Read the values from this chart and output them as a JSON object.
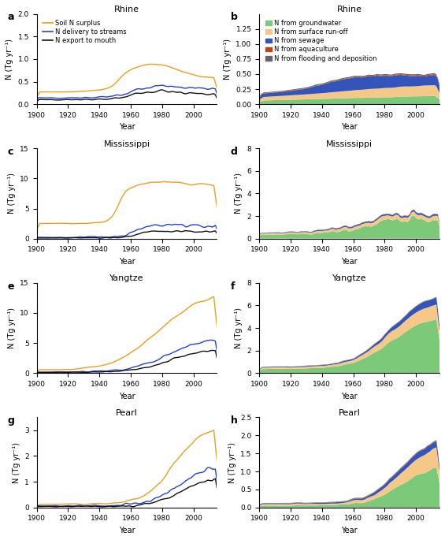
{
  "panels": {
    "a": {
      "title": "Rhine",
      "ylim": [
        0,
        2.0
      ],
      "yticks": [
        0,
        0.5,
        1.0,
        1.5,
        2.0
      ]
    },
    "b": {
      "title": "Rhine",
      "ylim": [
        0,
        1.5
      ],
      "yticks": [
        0,
        0.25,
        0.5,
        0.75,
        1.0,
        1.25
      ]
    },
    "c": {
      "title": "Mississippi",
      "ylim": [
        0,
        15
      ],
      "yticks": [
        0,
        5,
        10,
        15
      ]
    },
    "d": {
      "title": "Mississippi",
      "ylim": [
        0,
        8
      ],
      "yticks": [
        0,
        2,
        4,
        6,
        8
      ]
    },
    "e": {
      "title": "Yangtze",
      "ylim": [
        0,
        15
      ],
      "yticks": [
        0,
        5,
        10,
        15
      ]
    },
    "f": {
      "title": "Yangtze",
      "ylim": [
        0,
        8
      ],
      "yticks": [
        0,
        2,
        4,
        6,
        8
      ]
    },
    "g": {
      "title": "Pearl",
      "ylim": [
        0,
        3.5
      ],
      "yticks": [
        0,
        1,
        2,
        3
      ]
    },
    "h": {
      "title": "Pearl",
      "ylim": [
        0,
        2.5
      ],
      "yticks": [
        0,
        0.5,
        1.0,
        1.5,
        2.0,
        2.5
      ]
    }
  },
  "colors": {
    "soil_n": "#E8A020",
    "delivery": "#2244CC",
    "export": "#111111",
    "groundwater": "#7DC97A",
    "surface_runoff": "#F5C888",
    "sewage": "#3355BB",
    "aquaculture": "#BB4411",
    "flooding": "#666666"
  },
  "legend_left": [
    "Soil N surplus",
    "N delivery to streams",
    "N export to mouth"
  ],
  "legend_right": [
    "N from groundwater",
    "N from surface run-off",
    "N from sewage",
    "N from aquaculture",
    "N from flooding and deposition"
  ]
}
